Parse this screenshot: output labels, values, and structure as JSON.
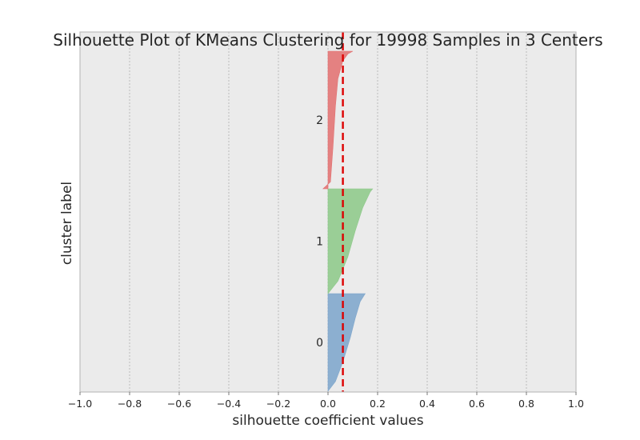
{
  "chart_data": {
    "type": "area",
    "title": "Silhouette Plot of KMeans Clustering for 19998 Samples in 3 Centers",
    "xlabel": "silhouette coefficient values",
    "ylabel": "cluster label",
    "xlim": [
      -1.0,
      1.0
    ],
    "xticks": [
      "−1.0",
      "−0.8",
      "−0.6",
      "−0.4",
      "−0.2",
      "0.0",
      "0.2",
      "0.4",
      "0.6",
      "0.8",
      "1.0"
    ],
    "xtick_values": [
      -1.0,
      -0.8,
      -0.6,
      -0.4,
      -0.2,
      0.0,
      0.2,
      0.4,
      0.6,
      0.8,
      1.0
    ],
    "grid": "vertical dashed",
    "average_silhouette_score": 0.06,
    "clusters": [
      {
        "label": "0",
        "color": "#7ea6cc",
        "profile": [
          [
            0.0,
            0.0
          ],
          [
            0.03,
            0.1
          ],
          [
            0.06,
            0.3
          ],
          [
            0.09,
            0.55
          ],
          [
            0.11,
            0.75
          ],
          [
            0.13,
            0.92
          ],
          [
            0.15,
            1.0
          ]
        ]
      },
      {
        "label": "1",
        "color": "#8ec98a",
        "profile": [
          [
            0.0,
            0.0
          ],
          [
            0.04,
            0.12
          ],
          [
            0.08,
            0.35
          ],
          [
            0.11,
            0.6
          ],
          [
            0.14,
            0.82
          ],
          [
            0.17,
            0.97
          ],
          [
            0.18,
            1.0
          ]
        ]
      },
      {
        "label": "2",
        "color": "#e27272",
        "profile": [
          [
            -0.02,
            0.0
          ],
          [
            0.01,
            0.05
          ],
          [
            0.02,
            0.3
          ],
          [
            0.03,
            0.6
          ],
          [
            0.04,
            0.8
          ],
          [
            0.06,
            0.93
          ],
          [
            0.08,
            0.98
          ],
          [
            0.1,
            1.0
          ]
        ]
      }
    ],
    "colors": {
      "background": "#ebebeb",
      "average_line": "#dd0000",
      "grid": "#b0b0b0"
    }
  }
}
